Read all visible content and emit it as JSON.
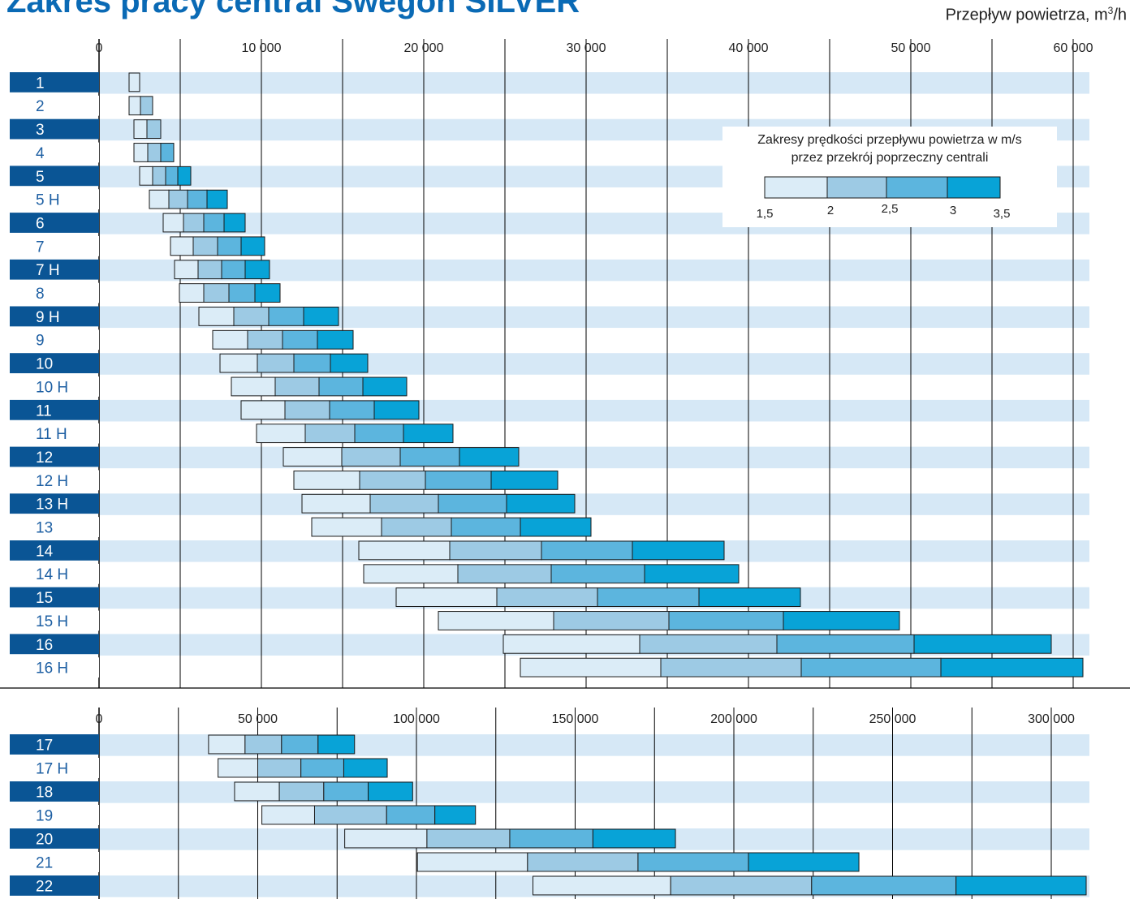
{
  "title": "Zakres pracy central Swegon SILVER",
  "unit_label": "Przepływ powietrza, m³/h",
  "colors": {
    "title": "#0a6ab5",
    "label_dark_bg": "#0a5595",
    "label_text_light": "#1d5fa3",
    "stripe": "#d6e8f6",
    "segments": [
      "#dbecf7",
      "#9dcae4",
      "#5cb5de",
      "#08a3d7"
    ],
    "grid": "#000000"
  },
  "legend": {
    "title_line1": "Zakresy prędkości przepływu powietrza w m/s",
    "title_line2": "przez przekrój poprzeczny centrali",
    "tick_labels": [
      "1,5",
      "2",
      "2,5",
      "3",
      "3,5"
    ]
  },
  "chart_data": [
    {
      "type": "bar",
      "subtype": "floating-stacked-horizontal",
      "xlim": [
        0,
        61000
      ],
      "x_ticks": [
        0,
        10000,
        20000,
        30000,
        40000,
        50000,
        60000
      ],
      "x_tick_labels": [
        "0",
        "10 000",
        "20 000",
        "30 000",
        "40 000",
        "50 000",
        "60 000"
      ],
      "grid": true,
      "legend_position": "top-right",
      "series_names": [
        "1,5–2",
        "2–2,5",
        "2,5–3",
        "3–3,5"
      ],
      "categories": [
        "1",
        "2",
        "3",
        "4",
        "5",
        "5 H",
        "6",
        "7",
        "7 H",
        "8",
        "9 H",
        "9",
        "10",
        "10 H",
        "11",
        "11 H",
        "12",
        "12 H",
        "13 H",
        "13",
        "14",
        "14 H",
        "15",
        "15 H",
        "16",
        "16 H"
      ],
      "rows": [
        {
          "label": "1",
          "bounds": [
            1850,
            2500
          ]
        },
        {
          "label": "2",
          "bounds": [
            1850,
            2550,
            3300
          ]
        },
        {
          "label": "3",
          "bounds": [
            2150,
            2950,
            3800
          ]
        },
        {
          "label": "4",
          "bounds": [
            2150,
            3000,
            3800,
            4600
          ]
        },
        {
          "label": "5",
          "bounds": [
            2500,
            3300,
            4100,
            4850,
            5650
          ]
        },
        {
          "label": "5 H",
          "bounds": [
            3100,
            4300,
            5450,
            6650,
            7900
          ]
        },
        {
          "label": "6",
          "bounds": [
            3950,
            5200,
            6450,
            7700,
            9000
          ]
        },
        {
          "label": "7",
          "bounds": [
            4400,
            5800,
            7300,
            8750,
            10200
          ]
        },
        {
          "label": "7 H",
          "bounds": [
            4650,
            6100,
            7550,
            9000,
            10500
          ]
        },
        {
          "label": "8",
          "bounds": [
            4950,
            6450,
            8000,
            9600,
            11150
          ]
        },
        {
          "label": "9 H",
          "bounds": [
            6150,
            8300,
            10450,
            12600,
            14750
          ]
        },
        {
          "label": "9",
          "bounds": [
            7000,
            9150,
            11300,
            13450,
            15650
          ]
        },
        {
          "label": "10",
          "bounds": [
            7450,
            9750,
            12000,
            14250,
            16550
          ]
        },
        {
          "label": "10 H",
          "bounds": [
            8150,
            10850,
            13550,
            16250,
            18950
          ]
        },
        {
          "label": "11",
          "bounds": [
            8750,
            11450,
            14200,
            16950,
            19700
          ]
        },
        {
          "label": "11 H",
          "bounds": [
            9700,
            12700,
            15750,
            18750,
            21800
          ]
        },
        {
          "label": "12",
          "bounds": [
            11350,
            14950,
            18550,
            22200,
            25850
          ]
        },
        {
          "label": "12 H",
          "bounds": [
            12000,
            16050,
            20100,
            24150,
            28250
          ]
        },
        {
          "label": "13 H",
          "bounds": [
            12500,
            16700,
            20900,
            25100,
            29300
          ]
        },
        {
          "label": "13",
          "bounds": [
            13100,
            17400,
            21700,
            25950,
            30300
          ]
        },
        {
          "label": "14",
          "bounds": [
            16000,
            21600,
            27250,
            32850,
            38500
          ]
        },
        {
          "label": "14 H",
          "bounds": [
            16300,
            22100,
            27850,
            33600,
            39400
          ]
        },
        {
          "label": "15",
          "bounds": [
            18300,
            24500,
            30700,
            36950,
            43200
          ]
        },
        {
          "label": "15 H",
          "bounds": [
            20900,
            28000,
            35100,
            42150,
            49300
          ]
        },
        {
          "label": "16",
          "bounds": [
            24900,
            33300,
            41750,
            50200,
            58650
          ]
        },
        {
          "label": "16 H",
          "bounds": [
            25950,
            34600,
            43250,
            51850,
            60600
          ]
        }
      ]
    },
    {
      "type": "bar",
      "subtype": "floating-stacked-horizontal",
      "xlim": [
        0,
        311000
      ],
      "x_ticks": [
        0,
        50000,
        100000,
        150000,
        200000,
        250000,
        300000
      ],
      "x_tick_labels": [
        "0",
        "50 000",
        "100 000",
        "150 000",
        "200 000",
        "250 000",
        "300 000"
      ],
      "grid": true,
      "series_names": [
        "1,5–2",
        "2–2,5",
        "2,5–3",
        "3–3,5"
      ],
      "categories": [
        "17",
        "17 H",
        "18",
        "19",
        "20",
        "21",
        "22"
      ],
      "rows": [
        {
          "label": "17",
          "bounds": [
            34500,
            46000,
            57500,
            69000,
            80500
          ]
        },
        {
          "label": "17 H",
          "bounds": [
            37500,
            50000,
            63600,
            77100,
            90800
          ]
        },
        {
          "label": "18",
          "bounds": [
            42700,
            56800,
            70800,
            84800,
            98800
          ]
        },
        {
          "label": "19",
          "bounds": [
            51300,
            67900,
            90600,
            105800,
            118600
          ]
        },
        {
          "label": "20",
          "bounds": [
            77400,
            103300,
            129400,
            155600,
            181600
          ]
        },
        {
          "label": "21",
          "bounds": [
            100300,
            135000,
            169800,
            204600,
            239400
          ]
        },
        {
          "label": "22",
          "bounds": [
            136700,
            180100,
            224500,
            270000,
            311000
          ]
        }
      ]
    }
  ]
}
